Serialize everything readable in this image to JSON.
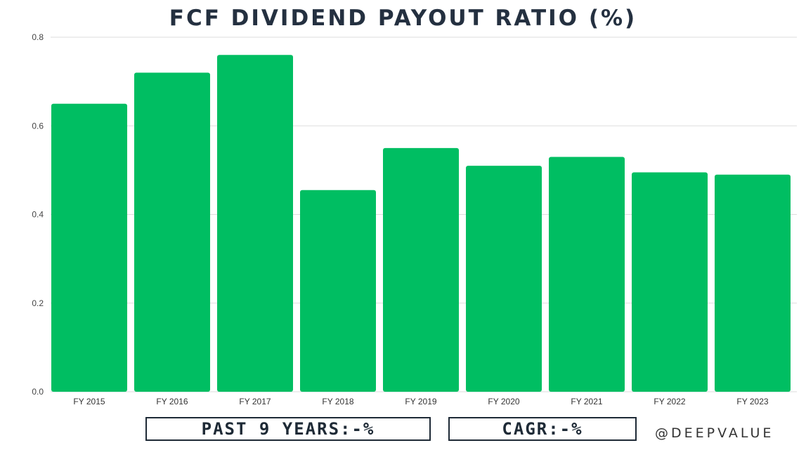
{
  "chart_data": {
    "type": "bar",
    "title": "FCF DIVIDEND PAYOUT RATIO (%)",
    "categories": [
      "FY 2015",
      "FY 2016",
      "FY 2017",
      "FY 2018",
      "FY 2019",
      "FY 2020",
      "FY 2021",
      "FY 2022",
      "FY 2023"
    ],
    "values": [
      0.65,
      0.72,
      0.76,
      0.455,
      0.55,
      0.51,
      0.53,
      0.495,
      0.49
    ],
    "y_ticks": [
      "0.0",
      "0.2",
      "0.4",
      "0.6",
      "0.8"
    ],
    "ylim": [
      0,
      0.8
    ],
    "grid": true,
    "bar_color": "#00be62",
    "xlabel": "",
    "ylabel": ""
  },
  "footer": {
    "years_label": "PAST 9 YEARS:-%",
    "cagr_label": "CAGR:-%",
    "handle": "@DEEPVALUE"
  }
}
